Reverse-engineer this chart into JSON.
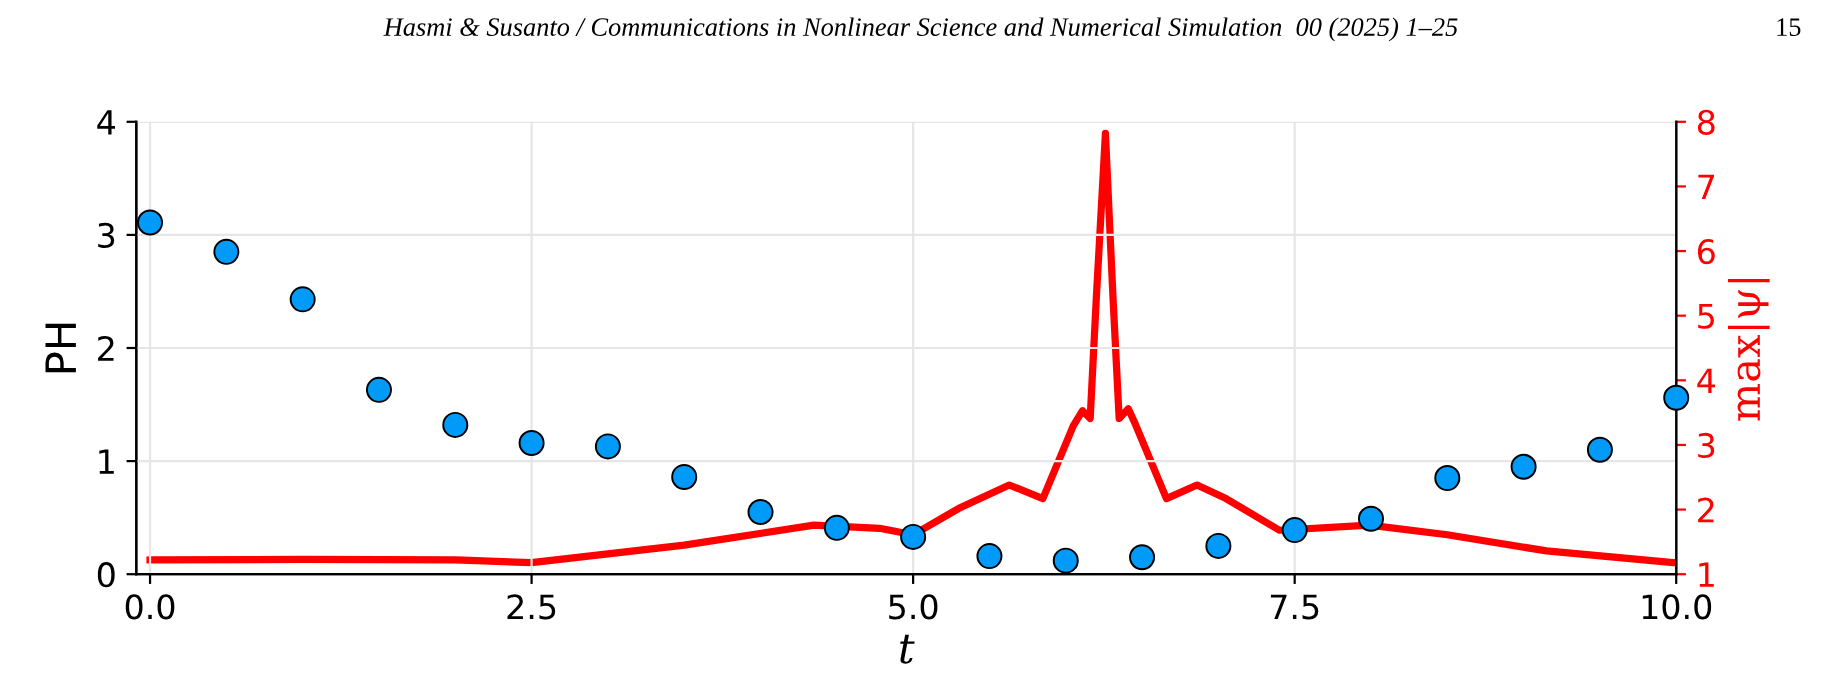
{
  "chart_data": {
    "type": "scatter",
    "xlabel": "t",
    "ylabel": "PH",
    "y2label": "max|ψ|",
    "annotations": [
      "Hasmi & Susanto / Communications in Nonlinear Science and Numerical Simulation  00 (2025) 1–25",
      "15"
    ],
    "xlim": [
      -0.09,
      10
    ],
    "xticks": [
      {
        "value": 0,
        "label": "0.0"
      },
      2.5,
      {
        "value": 5,
        "label": "5.0"
      },
      7.5,
      {
        "value": 10,
        "label": "10.0"
      }
    ],
    "ylim": [
      0,
      4
    ],
    "yticks": [
      0,
      1,
      2,
      3,
      4
    ],
    "y2lim": [
      1,
      8
    ],
    "y2ticks": [
      1,
      2,
      3,
      4,
      5,
      6,
      7,
      8
    ],
    "grid": true,
    "series": [
      {
        "color": "#009af9",
        "marker": "circle",
        "x": [
          0,
          0.5,
          1,
          1.5,
          2,
          2.5,
          3,
          3.5,
          4,
          4.5,
          5,
          5.5,
          6,
          6.5,
          7,
          7.5,
          8,
          8.5,
          9,
          9.5,
          10
        ],
        "values": [
          3.11,
          2.85,
          2.43,
          1.63,
          1.32,
          1.16,
          1.13,
          0.86,
          0.55,
          0.41,
          0.33,
          0.16,
          0.12,
          0.15,
          0.25,
          0.39,
          0.49,
          0.85,
          0.95,
          1.1,
          1.56
        ]
      },
      {
        "type": "line",
        "axis": "y2",
        "color": "#ff0000",
        "line_style": "solid",
        "x": [
          0,
          1,
          2,
          2.5,
          3.5,
          4.35,
          4.78,
          5.0,
          5.3,
          5.63,
          5.85,
          6.05,
          6.11,
          6.16,
          6.2,
          6.26,
          6.31,
          6.35,
          6.41,
          6.46,
          6.66,
          6.86,
          7.05,
          7.4,
          7.99,
          8.5,
          9.15,
          9.98,
          10
        ],
        "values": [
          1.22,
          1.23,
          1.22,
          1.18,
          1.45,
          1.76,
          1.71,
          1.61,
          2.02,
          2.38,
          2.17,
          3.3,
          3.53,
          3.41,
          5.26,
          7.82,
          5.26,
          3.41,
          3.56,
          3.3,
          2.17,
          2.38,
          2.17,
          1.68,
          1.76,
          1.61,
          1.36,
          1.18,
          1.18
        ]
      }
    ]
  }
}
